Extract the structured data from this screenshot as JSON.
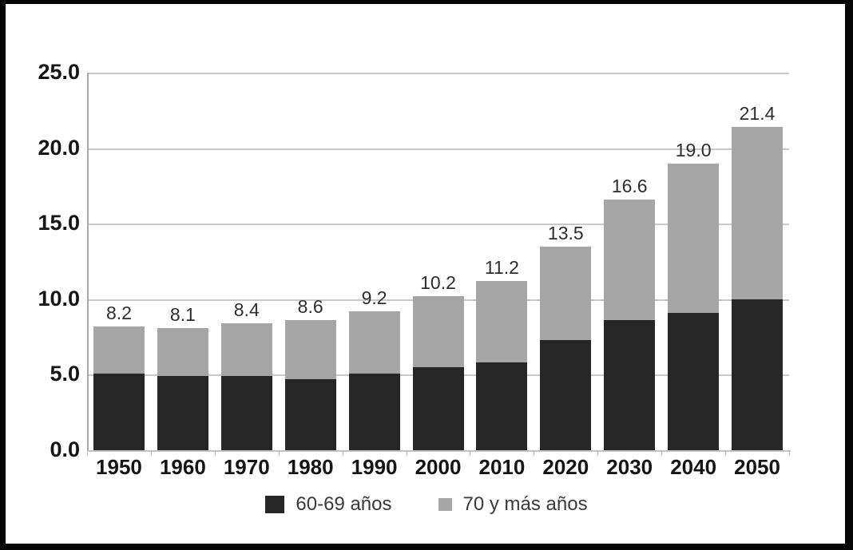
{
  "chart_data": {
    "type": "bar",
    "stacked": true,
    "categories": [
      "1950",
      "1960",
      "1970",
      "1980",
      "1990",
      "2000",
      "2010",
      "2020",
      "2030",
      "2040",
      "2050"
    ],
    "series": [
      {
        "name": "60-69 años",
        "color": "#262626",
        "values": [
          5.1,
          4.9,
          4.9,
          4.7,
          5.1,
          5.5,
          5.8,
          7.3,
          8.6,
          9.1,
          10.0
        ]
      },
      {
        "name": "70 y más años",
        "color": "#a6a6a6",
        "values": [
          3.1,
          3.2,
          3.5,
          3.9,
          4.1,
          4.7,
          5.4,
          6.2,
          8.0,
          9.9,
          11.4
        ]
      }
    ],
    "total_labels": [
      "8.2",
      "8.1",
      "8.4",
      "8.6",
      "9.2",
      "10.2",
      "11.2",
      "13.5",
      "16.6",
      "19.0",
      "21.4"
    ],
    "title": "",
    "xlabel": "",
    "ylabel": "",
    "ylim": [
      0,
      25
    ],
    "yticks": [
      {
        "value": 0,
        "label": "0.0"
      },
      {
        "value": 5,
        "label": "5.0"
      },
      {
        "value": 10,
        "label": "10.0"
      },
      {
        "value": 15,
        "label": "15.0"
      },
      {
        "value": 20,
        "label": "20.0"
      },
      {
        "value": 25,
        "label": "25.0"
      }
    ],
    "grid": true,
    "legend_position": "bottom"
  },
  "colors": {
    "frame": "#060606",
    "gridline": "#c9c9c9",
    "background": "#ffffff",
    "dark_series": "#262626",
    "gray_series": "#a6a6a6"
  }
}
